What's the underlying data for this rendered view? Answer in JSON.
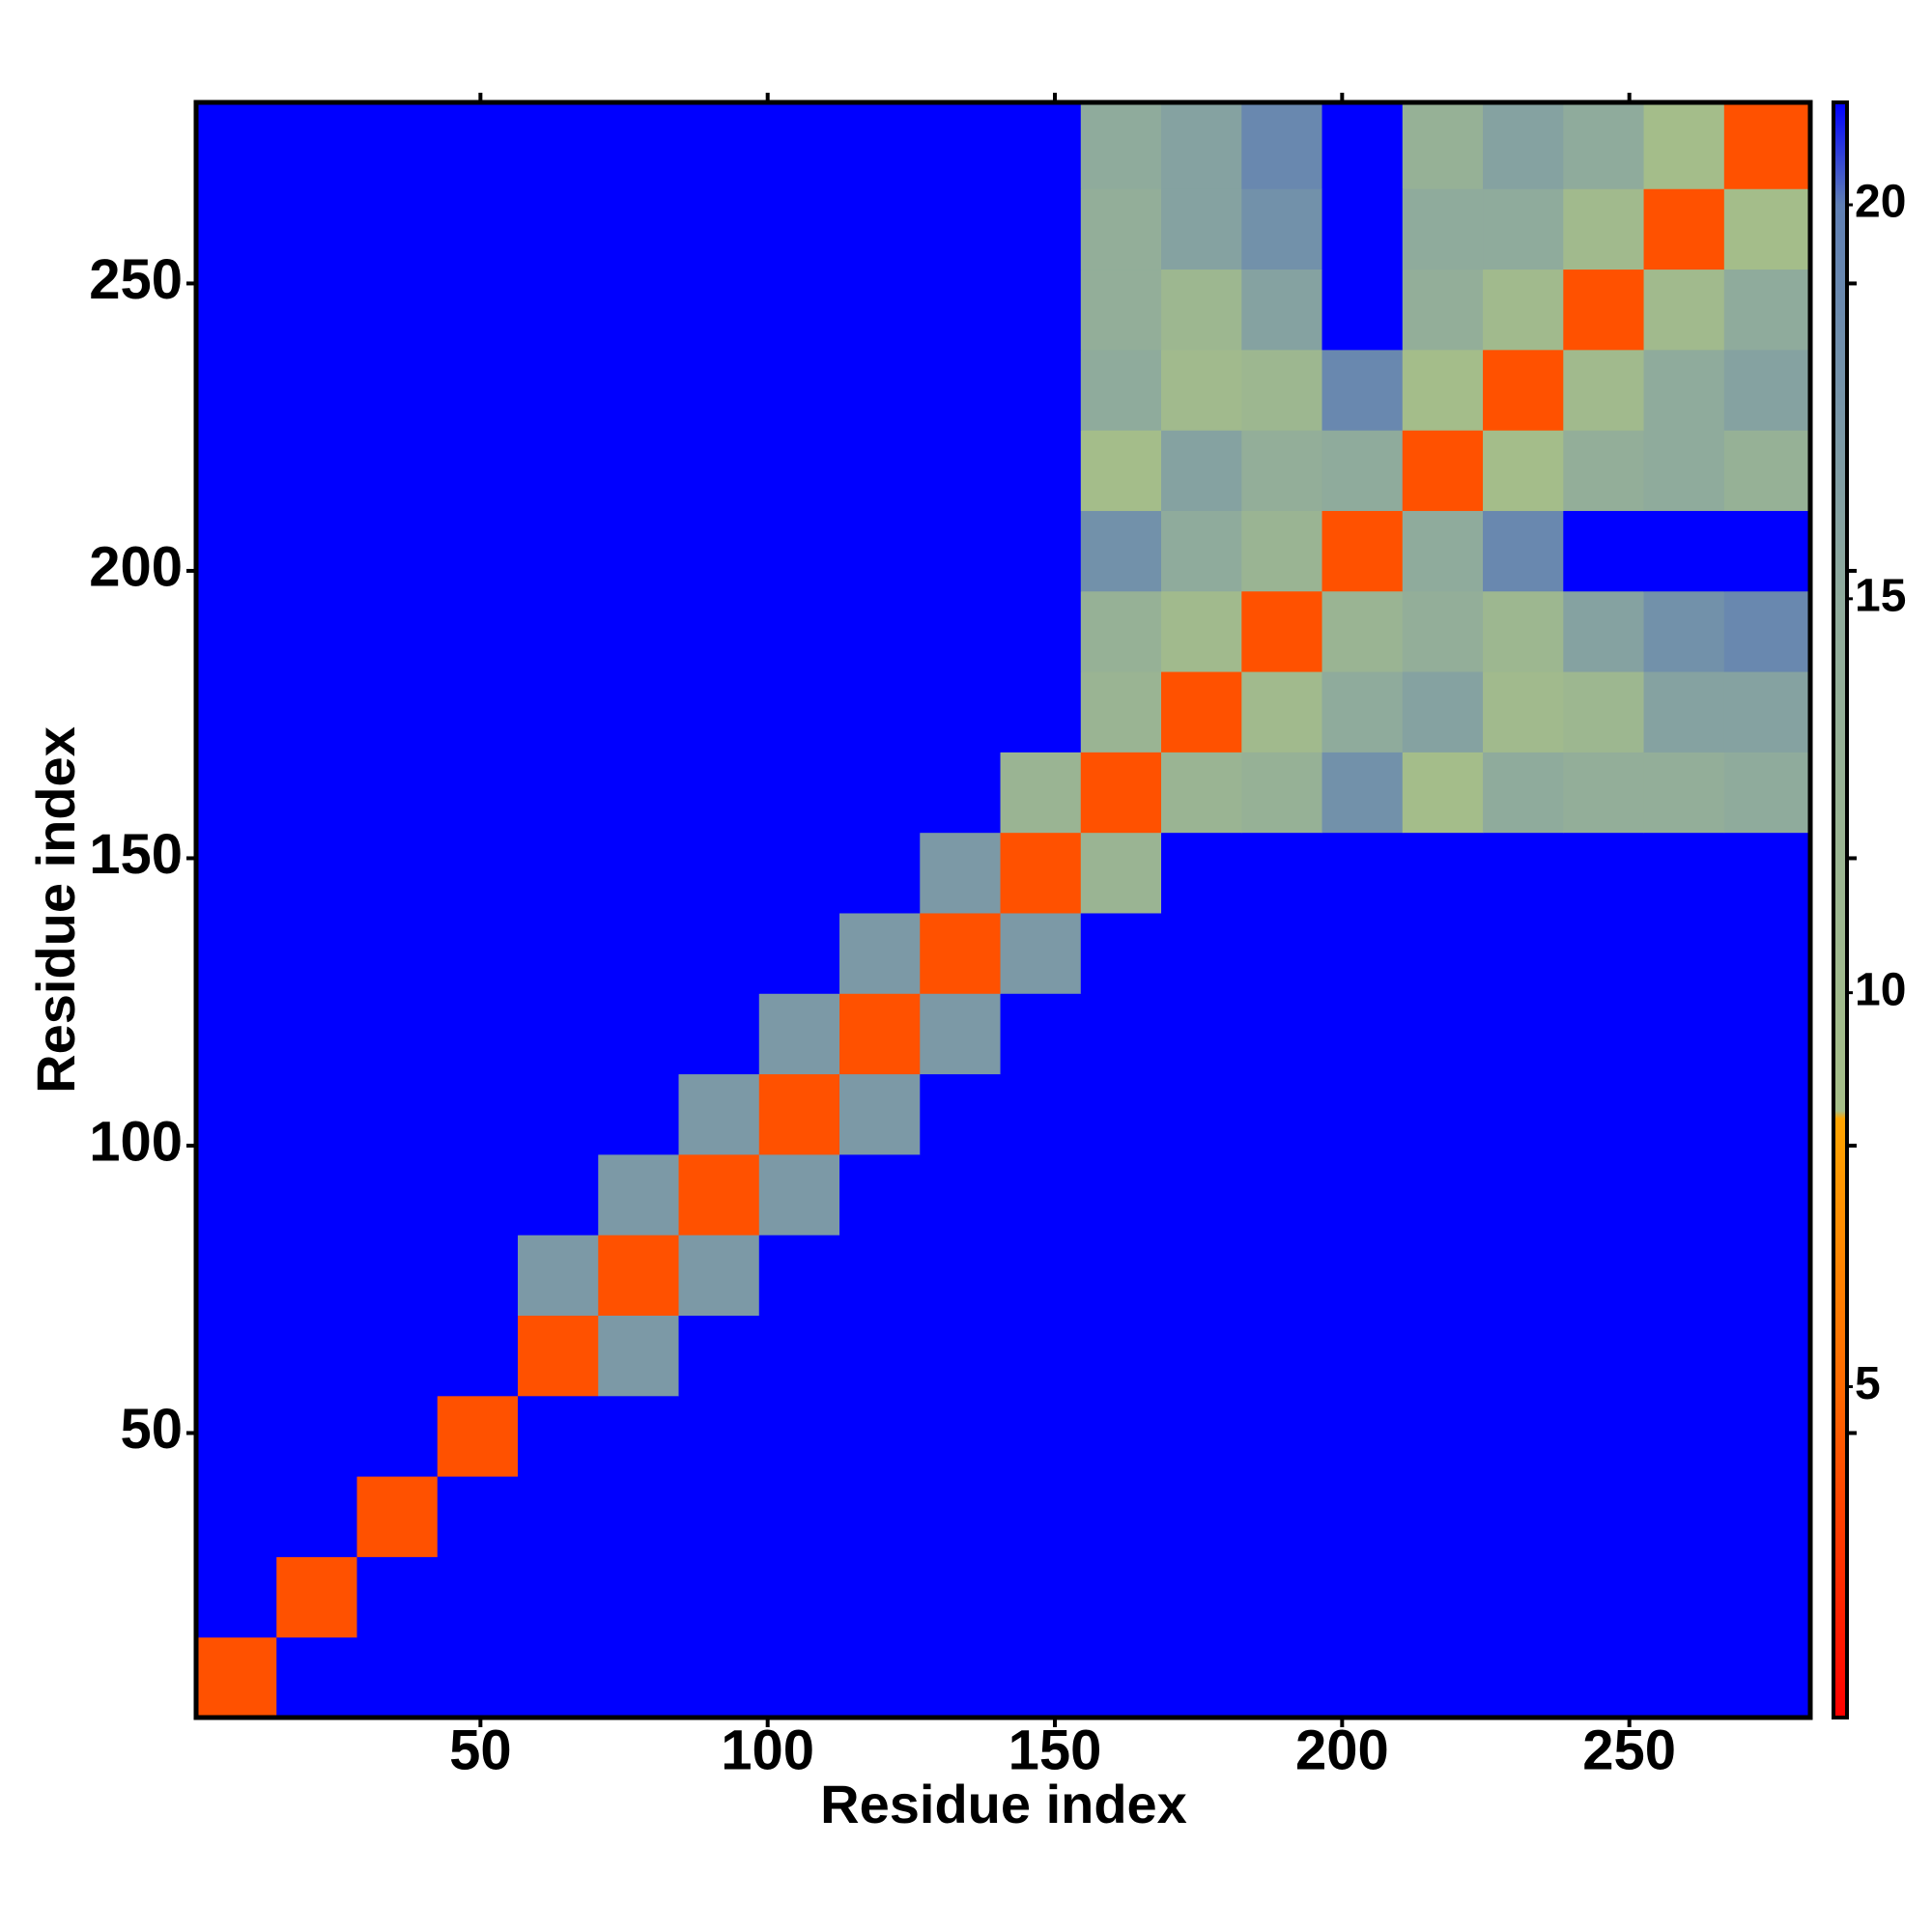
{
  "chart_data": {
    "type": "heatmap",
    "x_label": "Residue index",
    "y_label": "Residue index",
    "xlim": [
      0.5,
      281.5
    ],
    "ylim": [
      0.5,
      281.5
    ],
    "xticks": [
      50,
      100,
      150,
      200,
      250
    ],
    "yticks": [
      50,
      100,
      150,
      200,
      250
    ],
    "x_bins": [
      0.5,
      14.5,
      28.5,
      42.5,
      56.5,
      70.5,
      84.5,
      98.5,
      112.5,
      126.5,
      140.5,
      154.5,
      168.5,
      182.5,
      196.5,
      210.5,
      224.5,
      238.5,
      252.5,
      266.5,
      281.5
    ],
    "y_bins": [
      0.5,
      14.5,
      28.5,
      42.5,
      56.5,
      70.5,
      84.5,
      98.5,
      112.5,
      126.5,
      140.5,
      154.5,
      168.5,
      182.5,
      196.5,
      210.5,
      224.5,
      238.5,
      252.5,
      266.5,
      281.5
    ],
    "z": [
      [
        4,
        21.3,
        21.3,
        21.3,
        21.3,
        21.3,
        21.3,
        21.3,
        21.3,
        21.3,
        21.3,
        21.3,
        21.3,
        21.3,
        21.3,
        21.3,
        21.3,
        21.3,
        21.3,
        21.3
      ],
      [
        21.3,
        4,
        21.3,
        21.3,
        21.3,
        21.3,
        21.3,
        21.3,
        21.3,
        21.3,
        21.3,
        21.3,
        21.3,
        21.3,
        21.3,
        21.3,
        21.3,
        21.3,
        21.3,
        21.3
      ],
      [
        21.3,
        21.3,
        4,
        21.3,
        21.3,
        21.3,
        21.3,
        21.3,
        21.3,
        21.3,
        21.3,
        21.3,
        21.3,
        21.3,
        21.3,
        21.3,
        21.3,
        21.3,
        21.3,
        21.3
      ],
      [
        21.3,
        21.3,
        21.3,
        4,
        21.3,
        21.3,
        21.3,
        21.3,
        21.3,
        21.3,
        21.3,
        21.3,
        21.3,
        21.3,
        21.3,
        21.3,
        21.3,
        21.3,
        21.3,
        21.3
      ],
      [
        21.3,
        21.3,
        21.3,
        21.3,
        4,
        17,
        21.3,
        21.3,
        21.3,
        21.3,
        21.3,
        21.3,
        21.3,
        21.3,
        21.3,
        21.3,
        21.3,
        21.3,
        21.3,
        21.3
      ],
      [
        21.3,
        21.3,
        21.3,
        21.3,
        17,
        4,
        17,
        21.3,
        21.3,
        21.3,
        21.3,
        21.3,
        21.3,
        21.3,
        21.3,
        21.3,
        21.3,
        21.3,
        21.3,
        21.3
      ],
      [
        21.3,
        21.3,
        21.3,
        21.3,
        21.3,
        17,
        4,
        17,
        21.3,
        21.3,
        21.3,
        21.3,
        21.3,
        21.3,
        21.3,
        21.3,
        21.3,
        21.3,
        21.3,
        21.3
      ],
      [
        21.3,
        21.3,
        21.3,
        21.3,
        21.3,
        21.3,
        17,
        4,
        17,
        21.3,
        21.3,
        21.3,
        21.3,
        21.3,
        21.3,
        21.3,
        21.3,
        21.3,
        21.3,
        21.3
      ],
      [
        21.3,
        21.3,
        21.3,
        21.3,
        21.3,
        21.3,
        21.3,
        17,
        4,
        17,
        21.3,
        21.3,
        21.3,
        21.3,
        21.3,
        21.3,
        21.3,
        21.3,
        21.3,
        21.3
      ],
      [
        21.3,
        21.3,
        21.3,
        21.3,
        21.3,
        21.3,
        21.3,
        21.3,
        17,
        4,
        17,
        21.3,
        21.3,
        21.3,
        21.3,
        21.3,
        21.3,
        21.3,
        21.3,
        21.3
      ],
      [
        21.3,
        21.3,
        21.3,
        21.3,
        21.3,
        21.3,
        21.3,
        21.3,
        21.3,
        17,
        4,
        12,
        21.3,
        21.3,
        21.3,
        21.3,
        21.3,
        21.3,
        21.3,
        21.3
      ],
      [
        21.3,
        21.3,
        21.3,
        21.3,
        21.3,
        21.3,
        21.3,
        21.3,
        21.3,
        21.3,
        12,
        4,
        12,
        13,
        18,
        9,
        15,
        14,
        14,
        15
      ],
      [
        21.3,
        21.3,
        21.3,
        21.3,
        21.3,
        21.3,
        21.3,
        21.3,
        21.3,
        21.3,
        21.3,
        12,
        4,
        10,
        15,
        16,
        10,
        11,
        16,
        16
      ],
      [
        21.3,
        21.3,
        21.3,
        21.3,
        21.3,
        21.3,
        21.3,
        21.3,
        21.3,
        21.3,
        21.3,
        13,
        10,
        4,
        12,
        14,
        11,
        16,
        18,
        19
      ],
      [
        21.3,
        21.3,
        21.3,
        21.3,
        21.3,
        21.3,
        21.3,
        21.3,
        21.3,
        21.3,
        21.3,
        18,
        15,
        12,
        4,
        15,
        19,
        21.3,
        21.3,
        21.3
      ],
      [
        21.3,
        21.3,
        21.3,
        21.3,
        21.3,
        21.3,
        21.3,
        21.3,
        21.3,
        21.3,
        21.3,
        9,
        16,
        14,
        15,
        4,
        9,
        14,
        15,
        13
      ],
      [
        21.3,
        21.3,
        21.3,
        21.3,
        21.3,
        21.3,
        21.3,
        21.3,
        21.3,
        21.3,
        21.3,
        15,
        10,
        11,
        19,
        9,
        4,
        10,
        15,
        16
      ],
      [
        21.3,
        21.3,
        21.3,
        21.3,
        21.3,
        21.3,
        21.3,
        21.3,
        21.3,
        21.3,
        21.3,
        14,
        11,
        16,
        21.3,
        14,
        10,
        4,
        10,
        15
      ],
      [
        21.3,
        21.3,
        21.3,
        21.3,
        21.3,
        21.3,
        21.3,
        21.3,
        21.3,
        21.3,
        21.3,
        14,
        16,
        18,
        21.3,
        15,
        15,
        10,
        4,
        9
      ],
      [
        21.3,
        21.3,
        21.3,
        21.3,
        21.3,
        21.3,
        21.3,
        21.3,
        21.3,
        21.3,
        21.3,
        15,
        16,
        19,
        21.3,
        13,
        16,
        15,
        9,
        4
      ]
    ],
    "clim": [
      0.8,
      21.3
    ],
    "colorbar_ticks": [
      5,
      10,
      15,
      20
    ],
    "colorscale": [
      {
        "value": 0.8,
        "color": "#ff0000"
      },
      {
        "value": 5,
        "color": "#ff6a00"
      },
      {
        "value": 8.4,
        "color": "#ffa500"
      },
      {
        "value": 8.5,
        "color": "#a6bf88"
      },
      {
        "value": 15,
        "color": "#8fab9c"
      },
      {
        "value": 20,
        "color": "#5f7fb4"
      },
      {
        "value": 21.3,
        "color": "#0000ff"
      }
    ]
  }
}
